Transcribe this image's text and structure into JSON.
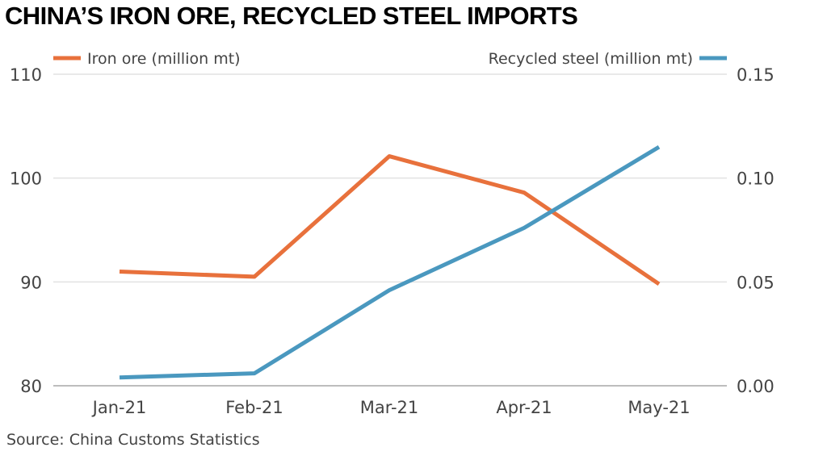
{
  "chart_data": {
    "type": "line",
    "title": "CHINA’S IRON ORE, RECYCLED STEEL IMPORTS",
    "source": "Source: China Customs Statistics",
    "categories": [
      "Jan-21",
      "Feb-21",
      "Mar-21",
      "Apr-21",
      "May-21"
    ],
    "series": [
      {
        "name": "Iron ore (million mt)",
        "axis": "left",
        "color": "#e8713c",
        "values": [
          91.0,
          90.5,
          102.1,
          98.6,
          89.8
        ]
      },
      {
        "name": "Recycled steel (million mt)",
        "axis": "right",
        "color": "#4a98bf",
        "values": [
          0.004,
          0.006,
          0.046,
          0.076,
          0.115
        ]
      }
    ],
    "y_left": {
      "range": [
        80,
        110
      ],
      "ticks": [
        80,
        90,
        100,
        110
      ],
      "tick_labels": [
        "80",
        "90",
        "100",
        "110"
      ]
    },
    "y_right": {
      "range": [
        0.0,
        0.15
      ],
      "ticks": [
        0.0,
        0.05,
        0.1,
        0.15
      ],
      "tick_labels": [
        "0.00",
        "0.05",
        "0.10",
        "0.15"
      ]
    },
    "grid": true,
    "legend": "top"
  }
}
